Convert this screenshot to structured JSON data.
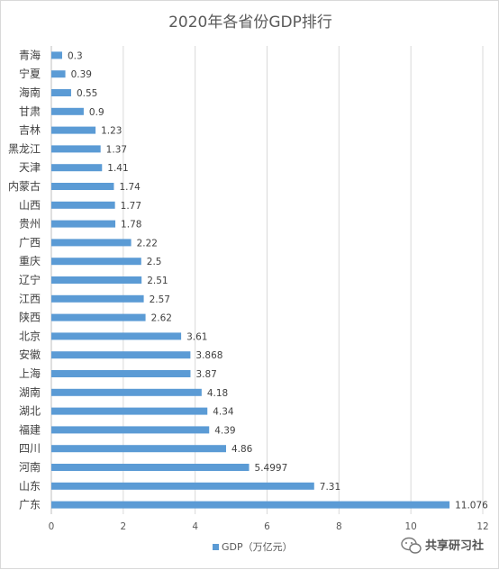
{
  "chart_data": {
    "type": "bar",
    "orientation": "horizontal",
    "title": "2020年各省份GDP排行",
    "categories": [
      "青海",
      "宁夏",
      "海南",
      "甘肃",
      "吉林",
      "黑龙江",
      "天津",
      "内蒙古",
      "山西",
      "贵州",
      "广西",
      "重庆",
      "辽宁",
      "江西",
      "陕西",
      "北京",
      "安徽",
      "上海",
      "湖南",
      "湖北",
      "福建",
      "四川",
      "河南",
      "山东",
      "广东"
    ],
    "series": [
      {
        "name": "GDP（万亿元）",
        "values": [
          0.3,
          0.39,
          0.55,
          0.9,
          1.23,
          1.37,
          1.41,
          1.74,
          1.77,
          1.78,
          2.22,
          2.5,
          2.51,
          2.57,
          2.62,
          3.61,
          3.868,
          3.87,
          4.18,
          4.34,
          4.39,
          4.86,
          5.4997,
          7.31,
          11.076
        ],
        "labels": [
          "0.3",
          "0.39",
          "0.55",
          "0.9",
          "1.23",
          "1.37",
          "1.41",
          "1.74",
          "1.77",
          "1.78",
          "2.22",
          "2.5",
          "2.51",
          "2.57",
          "2.62",
          "3.61",
          "3.868",
          "3.87",
          "4.18",
          "4.34",
          "4.39",
          "4.86",
          "5.4997",
          "7.31",
          "11.076"
        ],
        "color": "#5b9bd5"
      }
    ],
    "xlim": [
      0,
      12
    ],
    "xticks": [
      0,
      2,
      4,
      6,
      8,
      10,
      12
    ],
    "xtick_labels": [
      "0",
      "2",
      "4",
      "6",
      "8",
      "10",
      "12"
    ],
    "grid": "vertical",
    "legend_position": "bottom"
  },
  "watermark": {
    "text": "共享研习社",
    "icon": "wechat-icon"
  }
}
